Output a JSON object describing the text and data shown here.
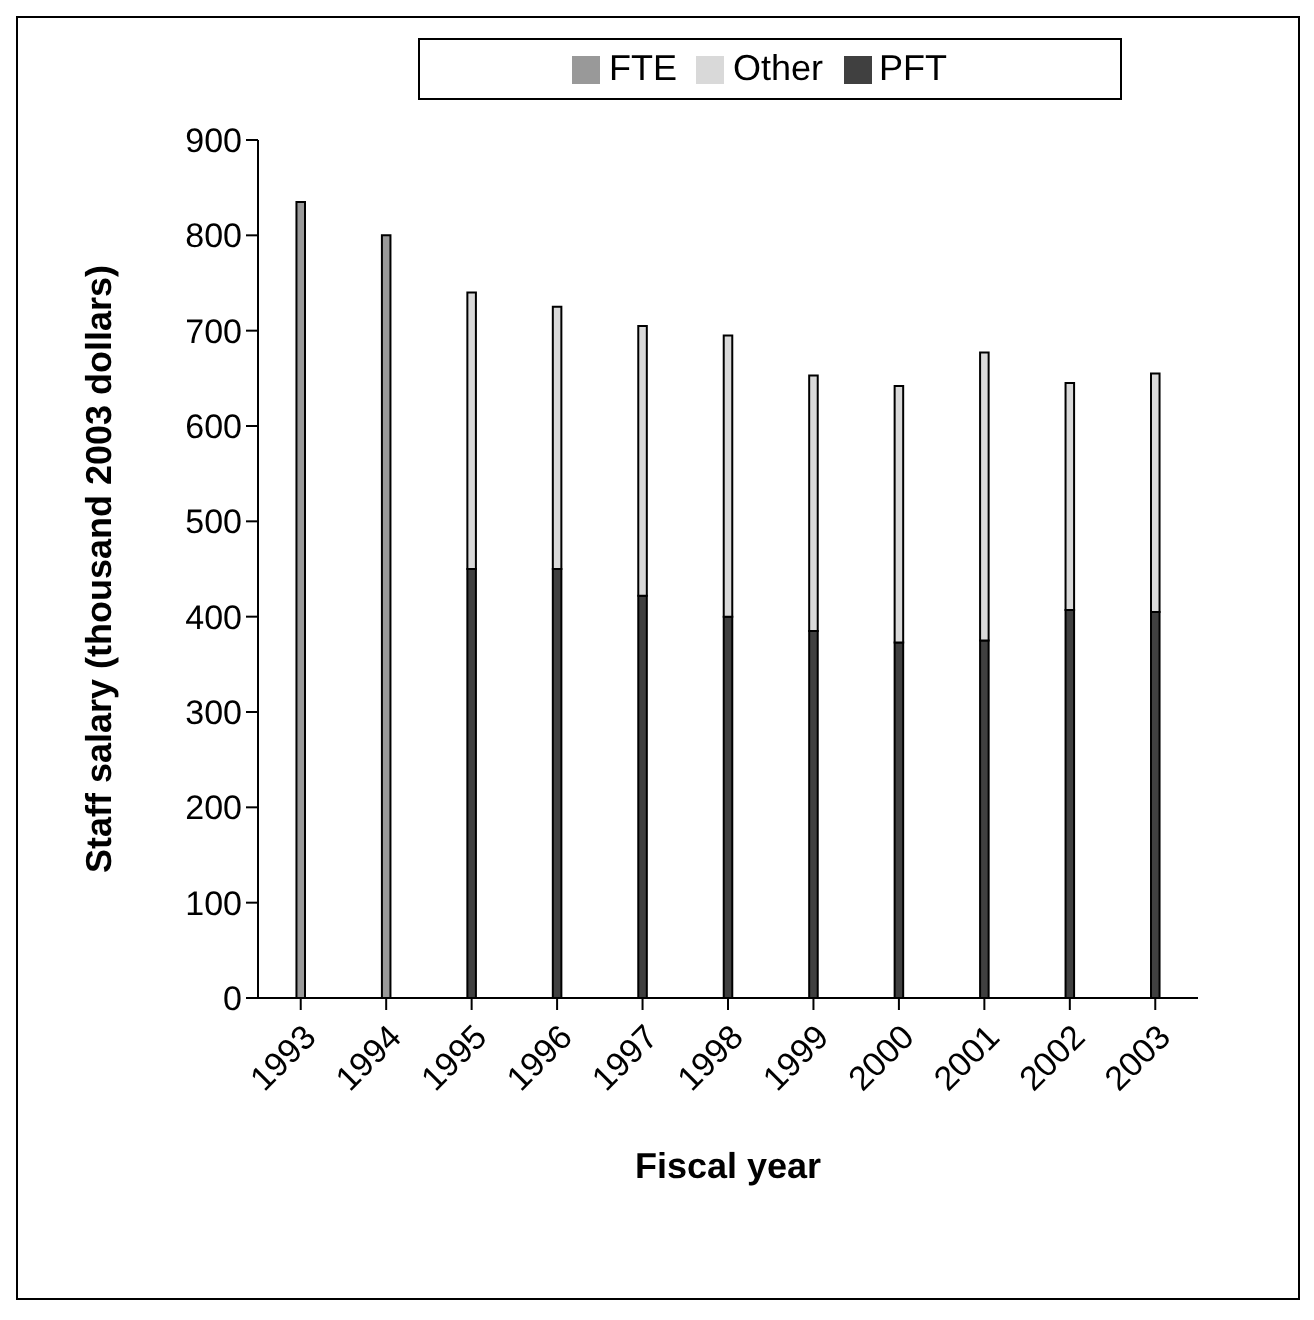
{
  "chart_data": {
    "type": "bar",
    "stacked": true,
    "xlabel": "Fiscal year",
    "ylabel": "Staff salary (thousand 2003 dollars)",
    "categories": [
      "1993",
      "1994",
      "1995",
      "1996",
      "1997",
      "1998",
      "1999",
      "2000",
      "2001",
      "2002",
      "2003"
    ],
    "series": [
      {
        "name": "FTE",
        "color": "#999999",
        "values": [
          835,
          800,
          null,
          null,
          null,
          null,
          null,
          null,
          null,
          null,
          null
        ]
      },
      {
        "name": "PFT",
        "color": "#404040",
        "values": [
          null,
          null,
          450,
          450,
          422,
          400,
          385,
          373,
          375,
          407,
          405
        ]
      },
      {
        "name": "Other",
        "color": "#d9d9d9",
        "values": [
          null,
          null,
          290,
          275,
          283,
          295,
          268,
          269,
          302,
          238,
          250
        ]
      }
    ],
    "ylim": [
      0,
      900
    ],
    "yticks": [
      0,
      100,
      200,
      300,
      400,
      500,
      600,
      700,
      800,
      900
    ],
    "grid": false,
    "legend": "top"
  }
}
